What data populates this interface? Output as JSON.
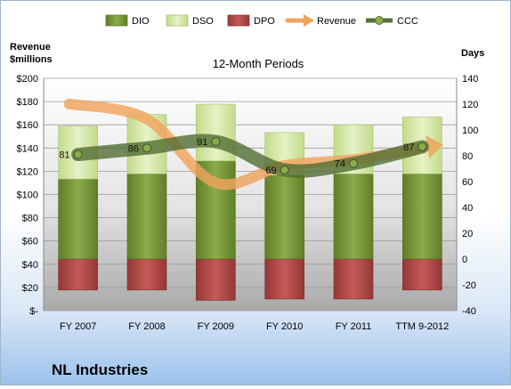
{
  "chart_data": {
    "type": "bar",
    "title": "12-Month Periods",
    "company": "NL Industries",
    "categories": [
      "FY 2007",
      "FY 2008",
      "FY 2009",
      "FY 2010",
      "FY 2011",
      "TTM 9-2012"
    ],
    "left_axis": {
      "label_line1": "Revenue",
      "label_line2": "$millions",
      "ylim": [
        0,
        200
      ],
      "ticks": [
        "$-",
        "$20",
        "$40",
        "$60",
        "$80",
        "$100",
        "$120",
        "$140",
        "$160",
        "$180",
        "$200"
      ]
    },
    "right_axis": {
      "label": "Days",
      "ylim": [
        -40,
        140
      ],
      "ticks": [
        "-40",
        "-20",
        "0",
        "20",
        "40",
        "60",
        "80",
        "100",
        "120",
        "140"
      ]
    },
    "legend": {
      "placement": "top",
      "entries": [
        "DIO",
        "DSO",
        "DPO",
        "Revenue",
        "CCC"
      ]
    },
    "series": [
      {
        "name": "DIO",
        "axis": "right",
        "values": [
          62,
          66,
          76,
          65,
          66,
          66
        ]
      },
      {
        "name": "DSO",
        "axis": "right",
        "values": [
          41,
          46,
          44,
          33,
          38,
          44
        ]
      },
      {
        "name": "DPO",
        "axis": "right",
        "values": [
          -24,
          -24,
          -32,
          -31,
          -31,
          -24
        ]
      },
      {
        "name": "Revenue",
        "axis": "left",
        "values": [
          178,
          165,
          110,
          125,
          130,
          140
        ]
      },
      {
        "name": "CCC",
        "axis": "right",
        "values": [
          81,
          86,
          91,
          69,
          74,
          87
        ]
      }
    ],
    "ccc_labels": [
      "81",
      "86",
      "91",
      "69",
      "74",
      "87"
    ],
    "colors": {
      "DIO": "#7a9a3a",
      "DSO": "#d4e6a6",
      "DPO": "#b44a48",
      "Revenue": "#f0a35e",
      "CCC": "#56703a"
    },
    "grid": true
  }
}
